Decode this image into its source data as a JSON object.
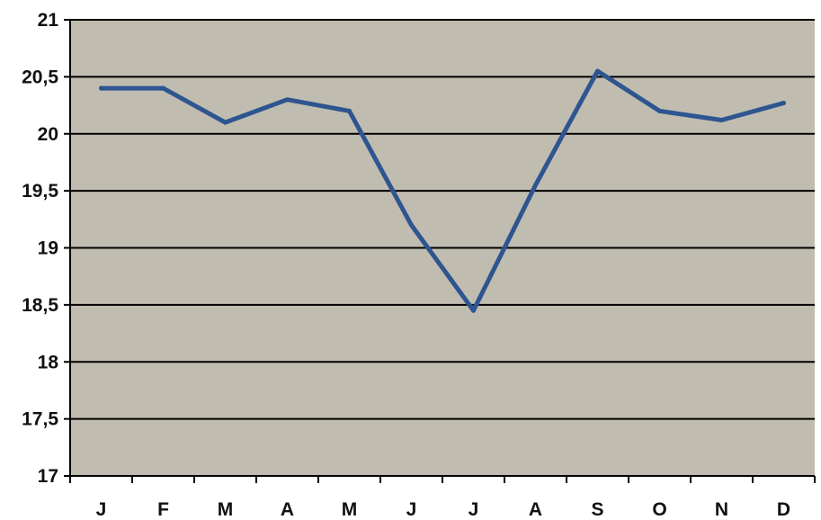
{
  "chart_data": {
    "type": "line",
    "title": "",
    "xlabel": "",
    "ylabel": "",
    "categories": [
      "J",
      "F",
      "M",
      "A",
      "M",
      "J",
      "J",
      "A",
      "S",
      "O",
      "N",
      "D"
    ],
    "series": [
      {
        "values": [
          20.4,
          20.4,
          20.1,
          20.3,
          20.2,
          19.2,
          18.45,
          19.55,
          20.55,
          20.2,
          20.12,
          20.27
        ]
      }
    ],
    "ylim": [
      17,
      21
    ],
    "yticks": [
      "17",
      "17,5",
      "18",
      "18,5",
      "19",
      "19,5",
      "20",
      "20,5",
      "21"
    ],
    "grid": true,
    "legend": "none",
    "colors": {
      "plot_background": "#c0bdb0",
      "line": "#2e5590",
      "grid": "#000000"
    }
  }
}
